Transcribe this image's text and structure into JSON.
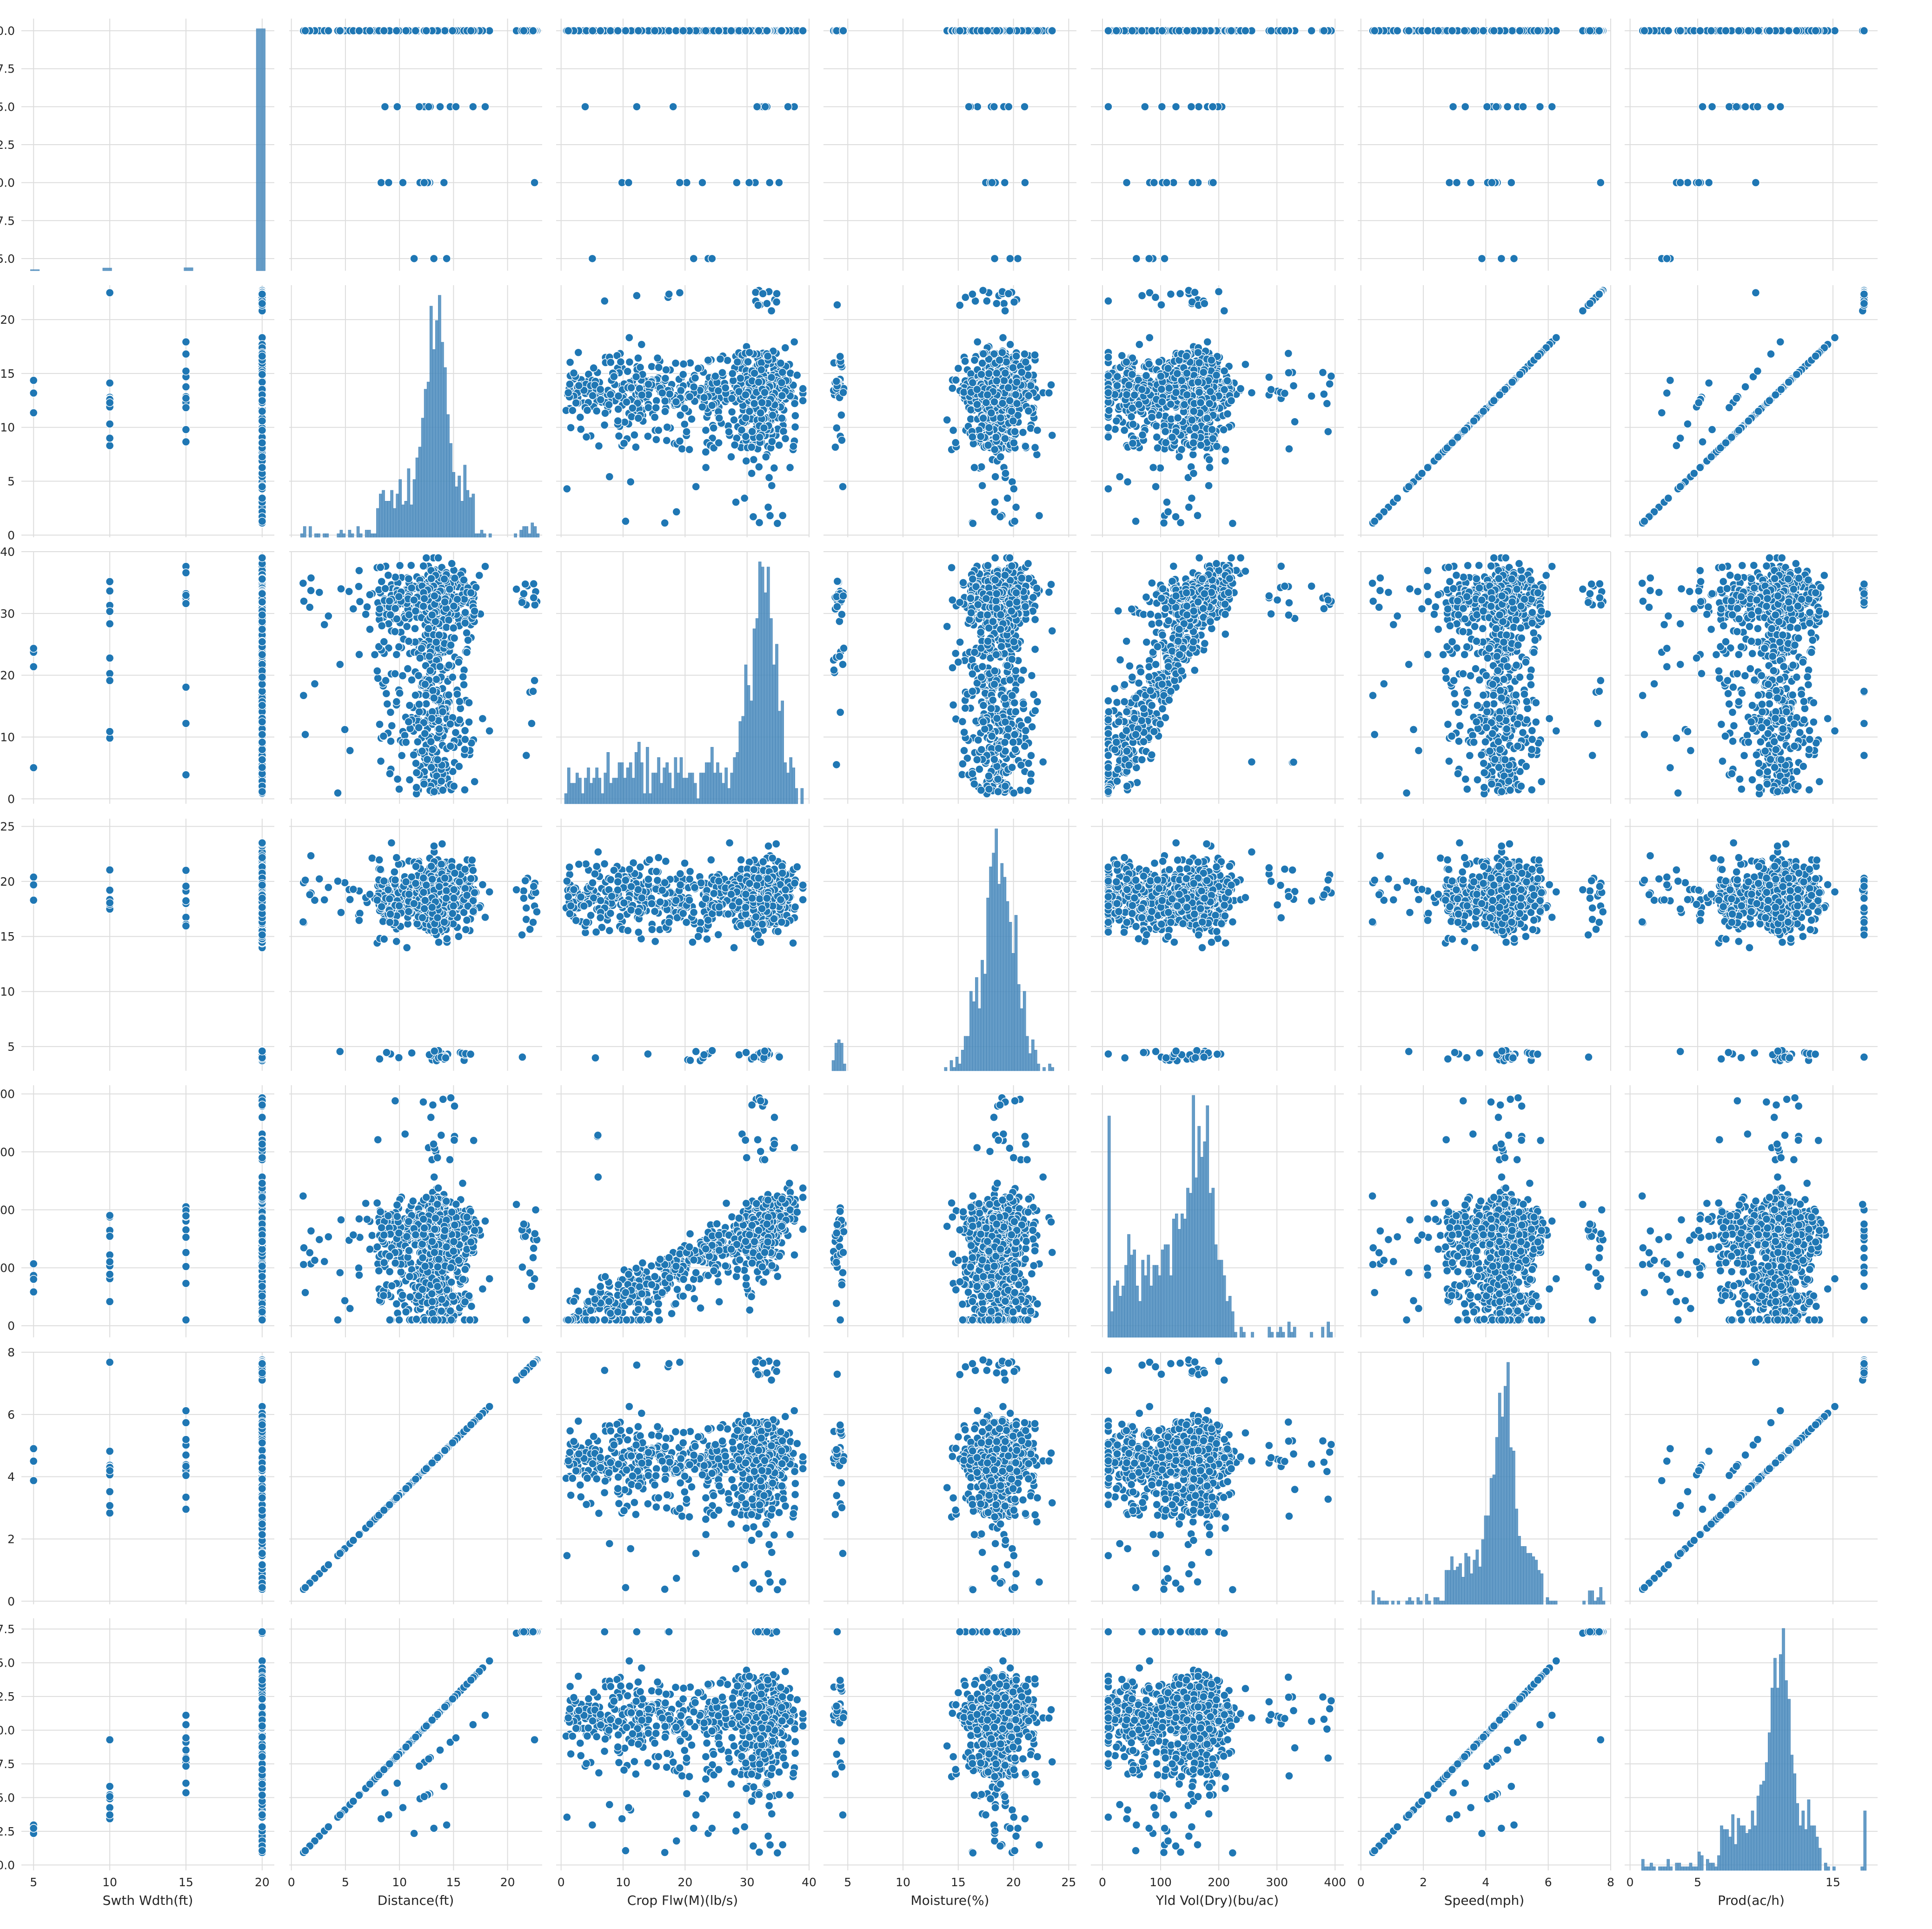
{
  "chart_data": {
    "type": "scatter",
    "kind": "pairplot",
    "style": "seaborn whitegrid",
    "grid": true,
    "color": "#1f77b4",
    "edge_color": "#ffffff",
    "variables": [
      {
        "name": "Swth Wdth(ft)",
        "lim": [
          4.2,
          20.8
        ],
        "ticks": [
          5,
          10,
          15,
          20
        ],
        "row_ticks": [
          "5.0",
          "7.5",
          "10.0",
          "12.5",
          "15.0",
          "17.5",
          "20.0"
        ],
        "row_tick_values": [
          5,
          7.5,
          10,
          12.5,
          15,
          17.5,
          20
        ]
      },
      {
        "name": "Distance(ft)",
        "lim": [
          -0.2,
          23.2
        ],
        "ticks": [
          0,
          5,
          10,
          15,
          20
        ]
      },
      {
        "name": "Crop Flw(M)(lb/s)",
        "lim": [
          -0.8,
          40.0
        ],
        "ticks": [
          0,
          10,
          20,
          30,
          40
        ]
      },
      {
        "name": "Moisture(%)",
        "lim": [
          2.8,
          25.7
        ],
        "ticks": [
          5,
          10,
          15,
          20,
          25
        ]
      },
      {
        "name": "Yld Vol(Dry)(bu/ac)",
        "lim": [
          -20,
          415
        ],
        "ticks": [
          0,
          100,
          200,
          300,
          400
        ]
      },
      {
        "name": "Speed(mph)",
        "lim": [
          -0.1,
          8.0
        ],
        "ticks": [
          0,
          2,
          4,
          6,
          8
        ]
      },
      {
        "name": "Prod(ac/h)",
        "lim": [
          -0.4,
          18.3
        ],
        "ticks": [
          0,
          5,
          15
        ],
        "row_ticks": [
          "0.0",
          "2.5",
          "5.0",
          "7.5",
          "10.0",
          "12.5",
          "15.0",
          "17.5"
        ],
        "row_tick_values": [
          0,
          2.5,
          5,
          7.5,
          10,
          12.5,
          15,
          17.5
        ]
      }
    ],
    "distributions": {
      "Swth Wdth(ft)": {
        "discrete_values": [
          5,
          10,
          12.5,
          15,
          17.5,
          20
        ],
        "weights": [
          0.005,
          0.012,
          0.0005,
          0.018,
          0.0002,
          0.9643
        ]
      },
      "Distance(ft)": {
        "center": 13.3,
        "spread": 0.9,
        "low_tail": 6.0,
        "range": [
          0.8,
          23.0
        ]
      },
      "Crop Flw(M)(lb/s)": {
        "center": 33.0,
        "spread": 2.2,
        "low_tail": 15.0,
        "range": [
          0.5,
          39.0
        ]
      },
      "Moisture(%)": {
        "center": 18.7,
        "spread": 0.6,
        "range": [
          3.5,
          24.8
        ],
        "outliers": [
          [
            3.8,
            4.5
          ],
          [
            8.6
          ],
          [
            12.3
          ]
        ]
      },
      "Yld Vol(Dry)(bu/ac)": {
        "center": 175,
        "spread": 12,
        "low_tail": 60,
        "range": [
          10,
          400
        ]
      },
      "Speed(mph)": {
        "center": 4.6,
        "spread": 0.3,
        "low_tail": 1.5,
        "range": [
          0.25,
          7.7
        ]
      },
      "Prod(ac/h)": {
        "center": 11.1,
        "spread": 0.55,
        "low_tail": 3.0,
        "range": [
          0.1,
          17.3
        ]
      }
    },
    "relations": {
      "Speed_vs_Distance": "linear, speed = distance / 2.93",
      "Prod_vs_Speed": "four lines by swath width, slopes 2.42, 1.82, 1.21, 0.61",
      "Prod_vs_Distance": "four lines by swath width",
      "Yld_vs_CropFlw": "positive band, yield rises with crop flow up to about 200"
    }
  }
}
